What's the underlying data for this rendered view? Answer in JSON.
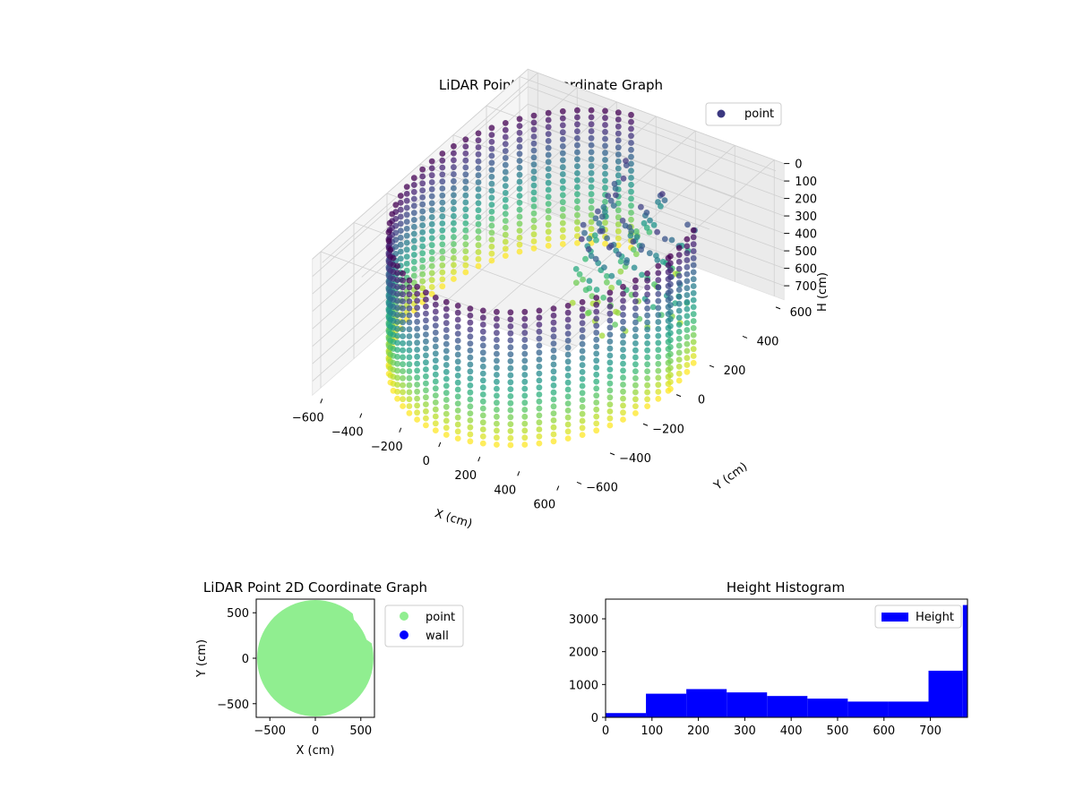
{
  "chart_data": [
    {
      "type": "scatter3d",
      "title": "LiDAR Point 3D Coordinate Graph",
      "xlabel": "X (cm)",
      "ylabel": "Y (cm)",
      "zlabel": "H (cm)",
      "xticks": [
        "−600",
        "−400",
        "−200",
        "0",
        "200",
        "400",
        "600"
      ],
      "yticks": [
        "−600",
        "−400",
        "−200",
        "0",
        "200",
        "400",
        "600"
      ],
      "zticks": [
        "0",
        "100",
        "200",
        "300",
        "400",
        "500",
        "600",
        "700"
      ],
      "xlim": [
        -650,
        650
      ],
      "ylim": [
        -650,
        650
      ],
      "zlim": [
        0,
        780
      ],
      "z_inverted": true,
      "colormap": "viridis",
      "legend": {
        "location": "upper-right",
        "entries": [
          "point"
        ],
        "color": "#3b3880"
      },
      "series": [
        {
          "name": "point",
          "description_type": "cylindrical wall of points, radius ~620 cm, heights 0-780 cm"
        }
      ]
    },
    {
      "type": "scatter",
      "title": "LiDAR Point 2D Coordinate Graph",
      "xlabel": "X (cm)",
      "ylabel": "Y (cm)",
      "xticks": [
        "−500",
        "0",
        "500"
      ],
      "yticks": [
        "−500",
        "0",
        "500"
      ],
      "xlim": [
        -650,
        650
      ],
      "ylim": [
        -650,
        650
      ],
      "legend": {
        "location": "outside-right",
        "entries": [
          "point",
          "wall"
        ]
      },
      "series": [
        {
          "name": "point",
          "color": "#90ee90",
          "shape": "filled disc, radius ~620 cm"
        },
        {
          "name": "wall",
          "color": "#0000ff"
        }
      ]
    },
    {
      "type": "bar",
      "title": "Height Histogram",
      "legend": {
        "location": "upper-right",
        "entries": [
          "Height"
        ],
        "color": "#0000ff"
      },
      "xticks": [
        "0",
        "100",
        "200",
        "300",
        "400",
        "500",
        "600",
        "700"
      ],
      "yticks": [
        "0",
        "1000",
        "2000",
        "3000"
      ],
      "xlim": [
        0,
        780
      ],
      "ylim": [
        0,
        3600
      ],
      "bins": [
        {
          "x0": 0,
          "x1": 87,
          "value": 130
        },
        {
          "x0": 87,
          "x1": 174,
          "value": 720
        },
        {
          "x0": 174,
          "x1": 261,
          "value": 860
        },
        {
          "x0": 261,
          "x1": 348,
          "value": 760
        },
        {
          "x0": 348,
          "x1": 435,
          "value": 650
        },
        {
          "x0": 435,
          "x1": 522,
          "value": 570
        },
        {
          "x0": 522,
          "x1": 609,
          "value": 480
        },
        {
          "x0": 609,
          "x1": 696,
          "value": 480
        },
        {
          "x0": 696,
          "x1": 770,
          "value": 1420
        },
        {
          "x0": 770,
          "x1": 780,
          "value": 3420
        }
      ],
      "color": "#0000ff"
    }
  ]
}
